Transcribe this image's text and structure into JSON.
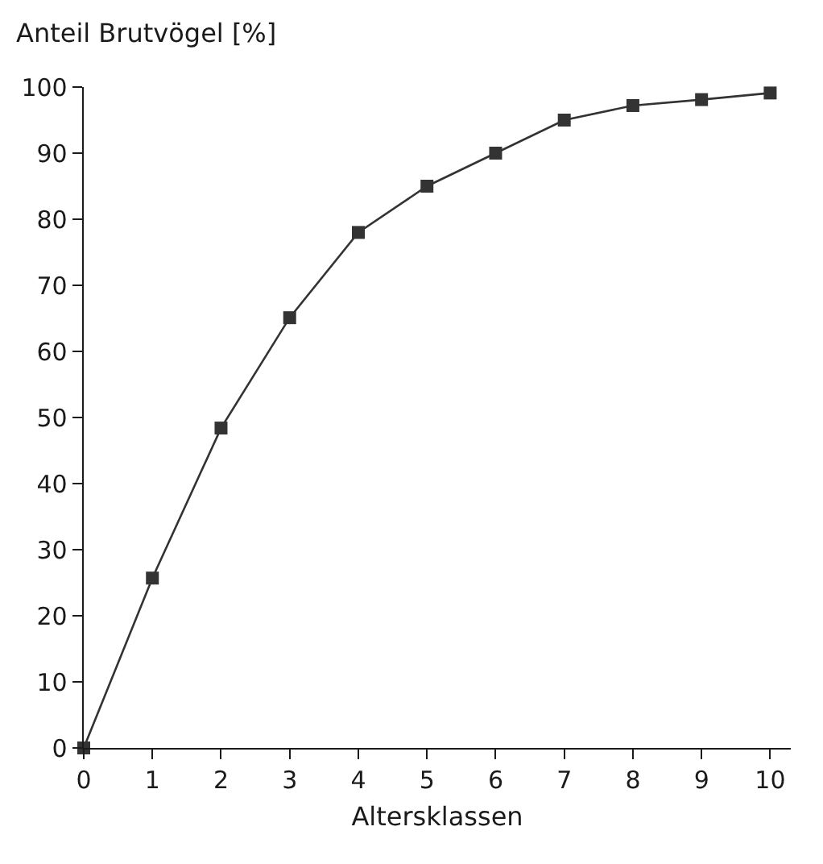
{
  "chart_data": {
    "type": "line",
    "ylabel": "Anteil Brutvögel [%]",
    "xlabel": "Altersklassen",
    "x": [
      0,
      1,
      2,
      3,
      4,
      5,
      6,
      7,
      8,
      9,
      10
    ],
    "series": [
      {
        "color": "#333333",
        "values": [
          0,
          25.7,
          48.4,
          65.1,
          78,
          85,
          90,
          95,
          97.2,
          98.1,
          99.1
        ]
      }
    ],
    "xlim": [
      0,
      10.3
    ],
    "xticks": [
      0,
      1,
      2,
      3,
      4,
      5,
      6,
      7,
      8,
      9,
      10
    ],
    "ylim": [
      0,
      100
    ],
    "yticks": [
      0,
      10,
      20,
      30,
      40,
      50,
      60,
      70,
      80,
      90,
      100
    ],
    "marker": "square",
    "line_style": "solid",
    "grid": false
  }
}
